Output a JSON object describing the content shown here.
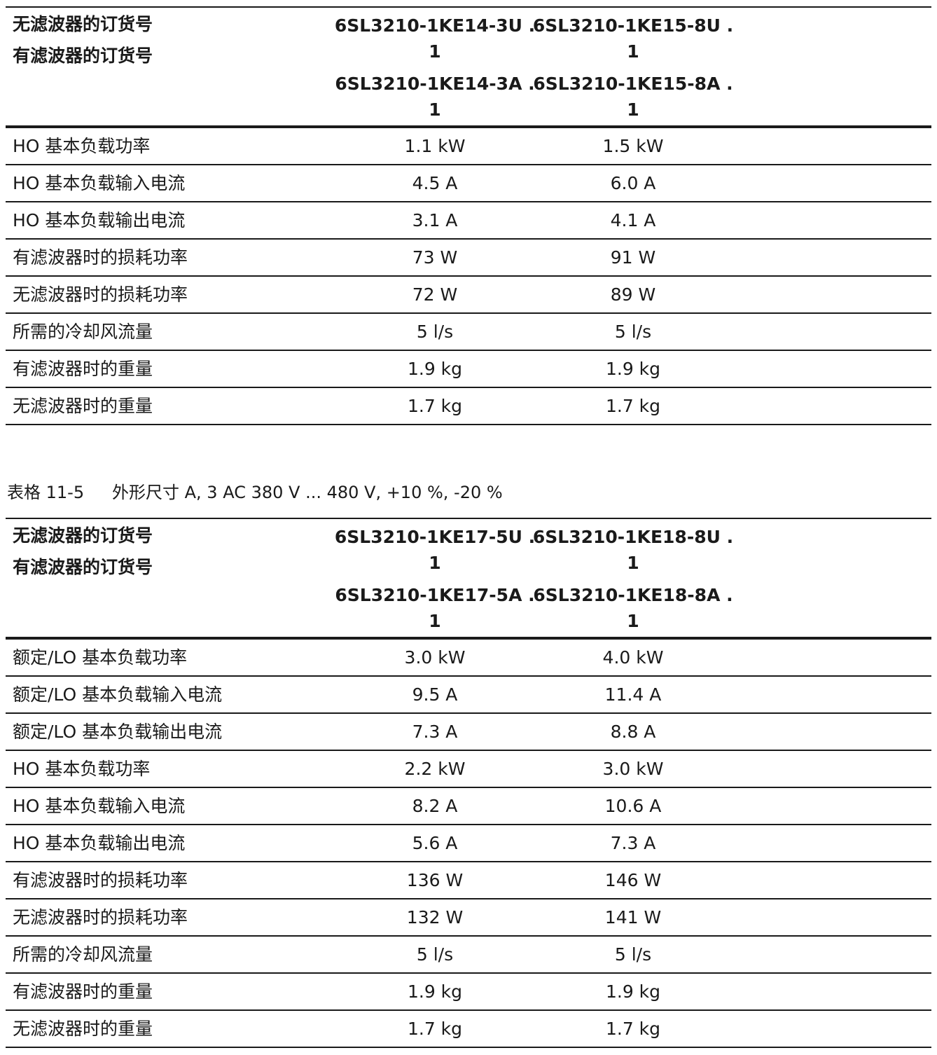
{
  "table1": {
    "header": {
      "label_no_filter": "无滤波器的订货号",
      "label_with_filter": "有滤波器的订货号",
      "col1_no_filter": "6SL3210-1KE14-3U .\n1",
      "col1_with_filter": "6SL3210-1KE14-3A .\n1",
      "col2_no_filter": "6SL3210-1KE15-8U .\n1",
      "col2_with_filter": "6SL3210-1KE15-8A .\n1"
    },
    "rows": [
      {
        "label": "HO 基本负载功率",
        "v1": "1.1 kW",
        "v2": "1.5 kW"
      },
      {
        "label": "HO 基本负载输入电流",
        "v1": "4.5 A",
        "v2": "6.0 A"
      },
      {
        "label": "HO 基本负载输出电流",
        "v1": "3.1 A",
        "v2": "4.1 A"
      },
      {
        "label": "有滤波器时的损耗功率",
        "v1": "73 W",
        "v2": "91 W"
      },
      {
        "label": "无滤波器时的损耗功率",
        "v1": "72 W",
        "v2": "89 W"
      },
      {
        "label": "所需的冷却风流量",
        "v1": "5 l/s",
        "v2": "5 l/s"
      },
      {
        "label": "有滤波器时的重量",
        "v1": "1.9 kg",
        "v2": "1.9 kg"
      },
      {
        "label": "无滤波器时的重量",
        "v1": "1.7 kg",
        "v2": "1.7 kg"
      }
    ]
  },
  "caption": {
    "number": "表格 11-5",
    "text": "外形尺寸 A, 3 AC 380 V ... 480 V, +10 %, -20 %"
  },
  "table2": {
    "header": {
      "label_no_filter": "无滤波器的订货号",
      "label_with_filter": "有滤波器的订货号",
      "col1_no_filter": "6SL3210-1KE17-5U .\n1",
      "col1_with_filter": "6SL3210-1KE17-5A .\n1",
      "col2_no_filter": "6SL3210-1KE18-8U .\n1",
      "col2_with_filter": "6SL3210-1KE18-8A .\n1"
    },
    "rows": [
      {
        "label": "额定/LO 基本负载功率",
        "v1": "3.0 kW",
        "v2": "4.0 kW"
      },
      {
        "label": "额定/LO 基本负载输入电流",
        "v1": "9.5 A",
        "v2": "11.4 A"
      },
      {
        "label": "额定/LO 基本负载输出电流",
        "v1": "7.3 A",
        "v2": "8.8 A"
      },
      {
        "label": "HO 基本负载功率",
        "v1": "2.2 kW",
        "v2": "3.0 kW"
      },
      {
        "label": "HO 基本负载输入电流",
        "v1": "8.2 A",
        "v2": "10.6 A"
      },
      {
        "label": "HO 基本负载输出电流",
        "v1": "5.6 A",
        "v2": "7.3 A"
      },
      {
        "label": "有滤波器时的损耗功率",
        "v1": "136 W",
        "v2": "146 W"
      },
      {
        "label": "无滤波器时的损耗功率",
        "v1": "132 W",
        "v2": "141 W"
      },
      {
        "label": "所需的冷却风流量",
        "v1": "5 l/s",
        "v2": "5 l/s"
      },
      {
        "label": "有滤波器时的重量",
        "v1": "1.9 kg",
        "v2": "1.9 kg"
      },
      {
        "label": "无滤波器时的重量",
        "v1": "1.7 kg",
        "v2": "1.7 kg"
      }
    ]
  }
}
